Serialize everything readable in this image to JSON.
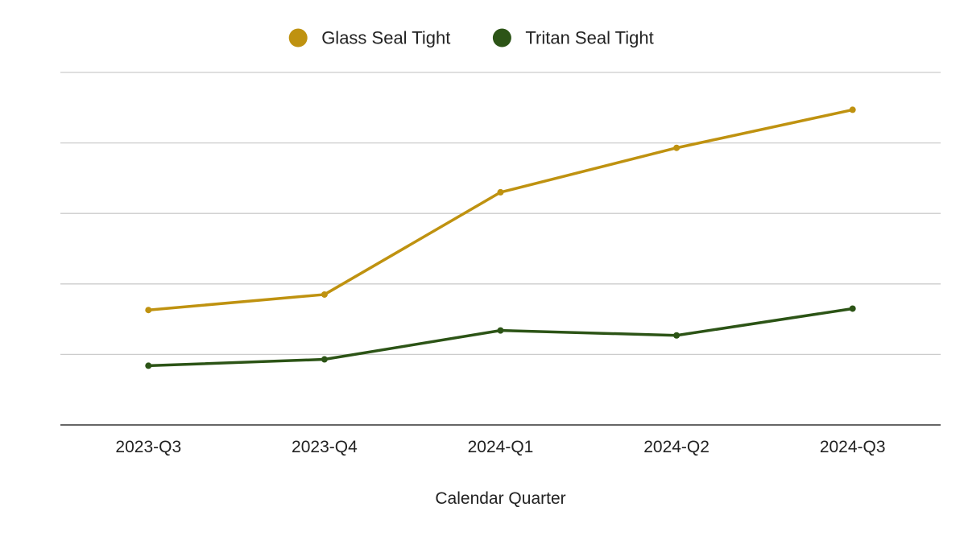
{
  "chart_data": {
    "type": "line",
    "categories": [
      "2023-Q3",
      "2023-Q4",
      "2024-Q1",
      "2024-Q2",
      "2024-Q3"
    ],
    "series": [
      {
        "name": "Glass Seal Tight",
        "color": "#bf9210",
        "values": [
          16.3,
          18.5,
          33.0,
          39.3,
          44.7
        ]
      },
      {
        "name": "Tritan Seal Tight",
        "color": "#2c5416",
        "values": [
          8.4,
          9.3,
          13.4,
          12.7,
          16.5
        ]
      }
    ],
    "title": "",
    "xlabel": "Calendar Quarter",
    "ylabel": "",
    "ylim": [
      0,
      50
    ],
    "y_tick_labels_shown": false,
    "grid": true,
    "legend_position": "top-center"
  }
}
